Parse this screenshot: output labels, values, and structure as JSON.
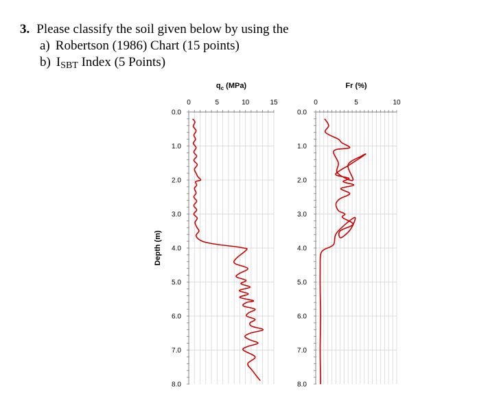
{
  "question": {
    "number": "3.",
    "text": "Please classify the soil given below by using the",
    "items": [
      {
        "label": "a)",
        "text": "Robertson (1986) Chart  (15 points)"
      },
      {
        "label": "b)",
        "text_main": "I",
        "text_sub": "SBT",
        "text_after": " Index (5 Points)"
      }
    ]
  },
  "chart_data": [
    {
      "type": "line",
      "title": "qc (MPa)",
      "title_main": "q",
      "title_sub": "c",
      "title_rest": " (MPa)",
      "xlim": [
        0,
        15
      ],
      "x_ticks": [
        "0",
        "5",
        "10",
        "15"
      ],
      "ylim": [
        0,
        8
      ],
      "y_ticks": [
        "0.0",
        "1.0",
        "2.0",
        "3.0",
        "4.0",
        "5.0",
        "6.0",
        "7.0",
        "8.0"
      ],
      "ylabel": "Depth (m)",
      "y_inverted": true,
      "grid": true,
      "color": "#cc0000",
      "series": [
        {
          "x": [
            0.7,
            1.1,
            0.8,
            1.3,
            0.9,
            1.2,
            0.8,
            1.3,
            0.9,
            1.4,
            0.9,
            1.5,
            1.0,
            1.3,
            1.6,
            2.1,
            1.2,
            1.4,
            1.0,
            1.3,
            0.9,
            1.4,
            0.9,
            1.4,
            0.9,
            1.5,
            1.1,
            1.4,
            1.8,
            1.3,
            1.6,
            2.4,
            3.5,
            5.2,
            7.8,
            9.7,
            10.2,
            8.4,
            8.1,
            10.4,
            8.9,
            8.4,
            10.1,
            9.2,
            10.8,
            8.9,
            10.5,
            9.0,
            11.4,
            10.2,
            9.6,
            11.7,
            10.6,
            10.2,
            11.7,
            10.8,
            11.1,
            13.1,
            10.9,
            9.9,
            10.8,
            12.2,
            10.3,
            9.6,
            11.7,
            10.4,
            11.2,
            12.6
          ],
          "y": [
            0.2,
            0.3,
            0.42,
            0.55,
            0.68,
            0.8,
            0.92,
            1.05,
            1.18,
            1.3,
            1.42,
            1.55,
            1.68,
            1.8,
            1.9,
            2.0,
            2.05,
            2.15,
            2.25,
            2.38,
            2.5,
            2.62,
            2.75,
            2.88,
            3.0,
            3.12,
            3.25,
            3.38,
            3.5,
            3.62,
            3.72,
            3.8,
            3.85,
            3.9,
            3.95,
            4.0,
            4.05,
            4.3,
            4.45,
            4.6,
            4.75,
            4.85,
            4.95,
            5.05,
            5.15,
            5.25,
            5.35,
            5.45,
            5.55,
            5.6,
            5.7,
            5.8,
            5.9,
            6.0,
            6.1,
            6.2,
            6.3,
            6.4,
            6.5,
            6.6,
            6.7,
            6.8,
            6.9,
            7.0,
            7.2,
            7.4,
            7.6,
            7.9
          ]
        }
      ]
    },
    {
      "type": "line",
      "title": "Fr (%)",
      "xlim": [
        0,
        10
      ],
      "x_ticks": [
        "0",
        "5",
        "10"
      ],
      "ylim": [
        0,
        8
      ],
      "y_ticks": [
        "0.0",
        "1.0",
        "2.0",
        "3.0",
        "4.0",
        "5.0",
        "6.0",
        "7.0",
        "8.0"
      ],
      "y_inverted": true,
      "grid": true,
      "color": "#cc0000",
      "series": [
        {
          "x": [
            1.1,
            1.6,
            1.2,
            2.8,
            3.2,
            4.2,
            2.6,
            2.2,
            2.8,
            2.6,
            3.3,
            4.6,
            4.0,
            5.6,
            6.1,
            4.2,
            3.0,
            2.5,
            4.1,
            3.4,
            4.7,
            3.1,
            4.2,
            3.0,
            2.5,
            2.8,
            3.6,
            3.3,
            4.6,
            3.0,
            3.1,
            4.3,
            4.8,
            2.6,
            2.2,
            1.0,
            0.6,
            0.55,
            0.55,
            0.6,
            0.55,
            0.6,
            0.6
          ],
          "y": [
            0.2,
            0.4,
            0.6,
            0.8,
            0.9,
            1.05,
            1.1,
            1.2,
            1.5,
            1.75,
            1.9,
            2.0,
            1.55,
            1.3,
            1.25,
            1.55,
            1.72,
            1.85,
            1.95,
            2.05,
            2.15,
            2.25,
            2.4,
            2.55,
            2.7,
            2.9,
            3.0,
            3.1,
            3.3,
            3.5,
            3.7,
            3.45,
            3.1,
            3.55,
            3.9,
            4.05,
            4.2,
            4.6,
            5.2,
            6.0,
            7.0,
            7.8,
            8.0
          ]
        }
      ]
    }
  ]
}
